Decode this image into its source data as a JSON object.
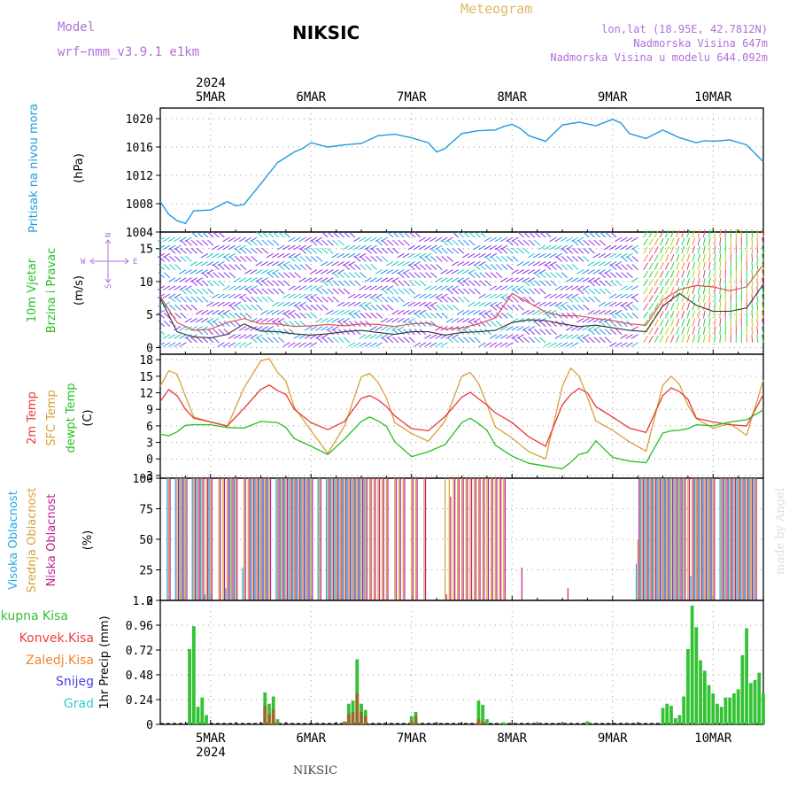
{
  "header": {
    "model_label": "Model",
    "model_name": "wrf−nmm_v3.9.1  e1km",
    "station": "NIKSIC",
    "product": "Meteogram",
    "coords": "lon,lat (18.95E, 42.7812N)",
    "altitude": "Nadmorska Visina 647m",
    "model_altitude": "Nadmorska Visina u modelu 644.092m"
  },
  "footer": {
    "station": "NIKSIC",
    "credit": "made by Angel"
  },
  "time_axis": {
    "year": "2024",
    "days": [
      "5MAR",
      "6MAR",
      "7MAR",
      "8MAR",
      "9MAR",
      "10MAR"
    ],
    "range_hours": [
      0,
      144
    ]
  },
  "panels": {
    "pressure": {
      "title": "Pritisak na nivou mora",
      "unit": "(hPa)"
    },
    "wind": {
      "title1": "10m Vjetar",
      "title2": "Brzina i Pravac",
      "unit": "(m/s)",
      "compass": {
        "n": "N",
        "s": "S",
        "e": "E",
        "w": "W"
      }
    },
    "temp": {
      "t2m": "2m Temp",
      "sfc": "SFC Temp",
      "dew": "dewpt Temp",
      "unit": "(C)"
    },
    "cloud": {
      "high": "Visoka Oblacnost",
      "mid": "Srednja Oblacnost",
      "low": "Niska Oblacnost",
      "unit": "(%)"
    },
    "precip": {
      "unit": "1hr Precip (mm)",
      "legend": [
        "Ukupna Kisa",
        "Konvek.Kisa",
        "Zaledj.Kisa",
        "Snijeg",
        "Grad"
      ]
    }
  },
  "colors": {
    "pressure": "#1e9be0",
    "wind_speed": "#303030",
    "wind_gust": "#e05050",
    "t2m": "#e83838",
    "sfc": "#d8a038",
    "dew": "#22c020",
    "cloud_high": "#22a8e8",
    "cloud_mid": "#d8a038",
    "cloud_low": "#c0208c",
    "precip_total": "#33c233",
    "precip_conv": "#ee3d3d",
    "precip_frz": "#ee8833",
    "precip_snow": "#4444dd",
    "precip_hail": "#33cccc",
    "title_purple": "#b070d8",
    "meteogram": "#e0b860"
  },
  "chart_data": [
    {
      "type": "line",
      "panel": "pressure",
      "ylabel": "(hPa)",
      "ylim": [
        1004,
        1021.5
      ],
      "yticks": [
        1004,
        1008,
        1012,
        1016,
        1020
      ],
      "x_hours": [
        0,
        2,
        4,
        6,
        8,
        12,
        16,
        18,
        20,
        24,
        28,
        32,
        34,
        36,
        40,
        44,
        48,
        52,
        56,
        60,
        64,
        66,
        68,
        72,
        76,
        80,
        82,
        84,
        86,
        88,
        92,
        96,
        100,
        104,
        108,
        110,
        112,
        116,
        120,
        124,
        128,
        130,
        132,
        136,
        140,
        144
      ],
      "series": [
        {
          "values": [
            1008.3,
            1006.5,
            1005.6,
            1005.2,
            1007.0,
            1007.1,
            1008.3,
            1007.7,
            1007.9,
            1010.8,
            1013.8,
            1015.3,
            1015.8,
            1016.6,
            1016.0,
            1016.3,
            1016.5,
            1017.6,
            1017.8,
            1017.3,
            1016.6,
            1015.3,
            1015.8,
            1017.9,
            1018.3,
            1018.4,
            1018.9,
            1019.2,
            1018.6,
            1017.6,
            1016.8,
            1019.1,
            1019.5,
            1019.0,
            1019.9,
            1019.4,
            1017.9,
            1017.2,
            1018.4,
            1017.3,
            1016.6,
            1016.9,
            1016.8,
            1017.0,
            1016.3,
            1013.9
          ]
        }
      ]
    },
    {
      "type": "line",
      "panel": "wind",
      "ylabel": "(m/s)",
      "ylim": [
        -1,
        17.5
      ],
      "yticks": [
        0,
        5,
        10,
        15
      ],
      "x_hours": [
        0,
        4,
        8,
        12,
        16,
        20,
        24,
        28,
        32,
        36,
        40,
        44,
        48,
        52,
        56,
        60,
        64,
        68,
        72,
        76,
        80,
        84,
        88,
        92,
        96,
        100,
        104,
        108,
        112,
        116,
        120,
        124,
        128,
        132,
        136,
        140,
        144
      ],
      "series": [
        {
          "name": "speed",
          "values": [
            7.5,
            2.4,
            1.6,
            1.5,
            2.0,
            3.6,
            2.5,
            2.4,
            2.1,
            1.9,
            2.1,
            2.4,
            2.6,
            2.3,
            2.0,
            2.4,
            2.4,
            1.9,
            2.3,
            2.4,
            2.6,
            3.8,
            4.2,
            4.1,
            3.6,
            3.2,
            3.4,
            3.0,
            2.6,
            2.4,
            6.3,
            8.2,
            6.4,
            5.5,
            5.5,
            6.0,
            9.6
          ]
        },
        {
          "name": "gust",
          "values": [
            7.8,
            3.8,
            2.6,
            2.8,
            3.8,
            4.4,
            3.6,
            3.6,
            3.2,
            3.3,
            3.5,
            3.3,
            3.6,
            3.5,
            3.2,
            3.6,
            3.7,
            2.8,
            3.0,
            3.6,
            4.5,
            8.2,
            6.8,
            5.4,
            4.8,
            4.8,
            4.4,
            4.1,
            3.6,
            3.4,
            7.2,
            8.8,
            9.4,
            9.2,
            8.6,
            9.2,
            12.6
          ]
        }
      ]
    },
    {
      "type": "line",
      "panel": "temperature",
      "ylabel": "(C)",
      "ylim": [
        -3.5,
        19
      ],
      "yticks": [
        -3,
        0,
        3,
        6,
        9,
        12,
        15,
        18
      ],
      "x_hours": [
        0,
        2,
        4,
        6,
        8,
        12,
        16,
        20,
        24,
        26,
        28,
        30,
        32,
        36,
        40,
        44,
        48,
        50,
        52,
        54,
        56,
        60,
        64,
        68,
        72,
        74,
        76,
        78,
        80,
        84,
        88,
        92,
        96,
        98,
        100,
        102,
        104,
        108,
        112,
        116,
        120,
        122,
        124,
        126,
        128,
        132,
        136,
        140,
        144
      ],
      "series": [
        {
          "name": "2m Temp",
          "values": [
            10.4,
            12.6,
            11.5,
            9.0,
            7.4,
            6.7,
            6.0,
            9.2,
            12.6,
            13.4,
            12.4,
            11.7,
            9.0,
            6.6,
            5.3,
            6.8,
            11.0,
            11.5,
            10.7,
            9.5,
            7.8,
            5.5,
            5.1,
            7.7,
            11.2,
            12.1,
            10.9,
            9.8,
            8.4,
            6.6,
            4.0,
            2.3,
            9.8,
            11.7,
            12.8,
            12.0,
            9.5,
            7.6,
            5.6,
            4.8,
            11.5,
            12.9,
            12.2,
            10.8,
            7.4,
            6.7,
            6.2,
            6.0,
            11.7
          ]
        },
        {
          "name": "SFC Temp",
          "values": [
            13.2,
            16.0,
            15.4,
            11.4,
            7.6,
            6.7,
            5.9,
            12.9,
            17.8,
            18.2,
            15.7,
            14.1,
            9.4,
            5.1,
            1.0,
            6.0,
            14.9,
            15.5,
            13.9,
            11.1,
            6.6,
            4.6,
            3.2,
            6.9,
            15.0,
            15.7,
            13.7,
            9.9,
            5.8,
            3.8,
            1.3,
            0.0,
            13.2,
            16.5,
            15.0,
            11.2,
            6.9,
            5.2,
            3.1,
            1.4,
            13.4,
            15.0,
            13.5,
            9.7,
            7.3,
            5.6,
            6.4,
            4.3,
            14.3
          ]
        },
        {
          "name": "dewpt Temp",
          "values": [
            4.5,
            4.2,
            4.9,
            6.1,
            6.2,
            6.2,
            5.7,
            5.6,
            6.8,
            6.7,
            6.6,
            5.7,
            3.7,
            2.3,
            0.8,
            3.6,
            6.8,
            7.6,
            6.9,
            5.9,
            3.1,
            0.4,
            1.3,
            2.6,
            6.6,
            7.4,
            6.4,
            5.2,
            2.5,
            0.5,
            -0.8,
            -1.3,
            -1.8,
            -0.6,
            0.8,
            1.2,
            3.3,
            0.3,
            -0.4,
            -0.7,
            4.7,
            5.1,
            5.2,
            5.5,
            6.2,
            6.0,
            6.7,
            7.1,
            8.9
          ]
        }
      ]
    },
    {
      "type": "bar",
      "panel": "cloud",
      "ylabel": "(%)",
      "ylim": [
        0,
        100
      ],
      "yticks": [
        0,
        25,
        50,
        75,
        100
      ],
      "x_hours": [
        2,
        4,
        5,
        6,
        8,
        9,
        10,
        11,
        12,
        14,
        15,
        16,
        17,
        18,
        20,
        21,
        22,
        23,
        24,
        25,
        26,
        28,
        29,
        30,
        31,
        32,
        33,
        34,
        35,
        36,
        38,
        40,
        41,
        42,
        43,
        44,
        45,
        46,
        47,
        48,
        49,
        50,
        51,
        52,
        53,
        54,
        56,
        57,
        58,
        60,
        61,
        63,
        68,
        69,
        70,
        71,
        72,
        73,
        74,
        75,
        76,
        77,
        78,
        79,
        80,
        81,
        82,
        86,
        97,
        102,
        114,
        115,
        116,
        117,
        118,
        119,
        120,
        121,
        122,
        123,
        124,
        125,
        126,
        127,
        128,
        129,
        130,
        131,
        132,
        134,
        135,
        136,
        137,
        138,
        139,
        140,
        141,
        142
      ],
      "series": [
        {
          "name": "Visoka Oblacnost",
          "values": [
            100,
            100,
            100,
            100,
            100,
            100,
            100,
            5,
            100,
            0,
            0,
            10,
            100,
            100,
            27,
            0,
            100,
            100,
            100,
            100,
            100,
            100,
            100,
            100,
            100,
            100,
            100,
            100,
            100,
            100,
            100,
            100,
            100,
            100,
            100,
            100,
            100,
            100,
            100,
            100,
            100,
            0,
            0,
            0,
            0,
            0,
            0,
            0,
            0,
            0,
            0,
            0,
            0,
            0,
            0,
            0,
            0,
            0,
            0,
            0,
            0,
            0,
            0,
            0,
            0,
            0,
            0,
            0,
            0,
            0,
            30,
            100,
            100,
            100,
            100,
            100,
            100,
            100,
            100,
            100,
            100,
            100,
            0,
            20,
            100,
            100,
            100,
            100,
            100,
            100,
            100,
            100,
            100,
            100,
            100,
            100,
            100,
            100
          ]
        },
        {
          "name": "Srednja Oblacnost",
          "values": [
            100,
            100,
            100,
            100,
            100,
            100,
            100,
            100,
            100,
            100,
            100,
            100,
            100,
            100,
            100,
            100,
            100,
            100,
            100,
            100,
            100,
            100,
            100,
            100,
            100,
            100,
            100,
            100,
            100,
            100,
            100,
            100,
            100,
            100,
            100,
            100,
            100,
            100,
            100,
            100,
            100,
            100,
            100,
            100,
            100,
            100,
            100,
            100,
            100,
            100,
            100,
            100,
            100,
            100,
            100,
            100,
            100,
            100,
            100,
            100,
            100,
            100,
            100,
            100,
            100,
            100,
            100,
            0,
            0,
            0,
            50,
            100,
            100,
            100,
            100,
            100,
            100,
            100,
            100,
            100,
            100,
            100,
            100,
            100,
            100,
            100,
            100,
            100,
            100,
            100,
            100,
            100,
            100,
            100,
            100,
            100,
            100,
            100
          ]
        },
        {
          "name": "Niska Oblacnost",
          "values": [
            100,
            100,
            100,
            100,
            100,
            100,
            100,
            100,
            100,
            100,
            100,
            100,
            100,
            100,
            100,
            100,
            100,
            100,
            100,
            100,
            100,
            100,
            100,
            100,
            100,
            100,
            100,
            100,
            100,
            100,
            100,
            100,
            100,
            100,
            100,
            100,
            100,
            100,
            100,
            100,
            100,
            100,
            100,
            100,
            100,
            100,
            100,
            100,
            100,
            100,
            100,
            100,
            5,
            85,
            100,
            100,
            100,
            100,
            100,
            100,
            100,
            100,
            100,
            100,
            100,
            100,
            100,
            27,
            10,
            0,
            100,
            100,
            100,
            100,
            100,
            100,
            100,
            100,
            100,
            100,
            100,
            100,
            100,
            100,
            100,
            100,
            100,
            100,
            100,
            100,
            100,
            100,
            100,
            100,
            100,
            100,
            100,
            100
          ]
        }
      ]
    },
    {
      "type": "bar",
      "panel": "precip",
      "ylabel": "1hr Precip (mm)",
      "ylim": [
        0,
        1.2
      ],
      "yticks": [
        0,
        0.24,
        0.48,
        0.72,
        0.96,
        1.2
      ],
      "x_hours": [
        7,
        8,
        9,
        10,
        11,
        12,
        25,
        26,
        27,
        28,
        29,
        30,
        44,
        45,
        46,
        47,
        48,
        49,
        50,
        60,
        61,
        76,
        77,
        78,
        82,
        102,
        120,
        121,
        122,
        123,
        124,
        125,
        126,
        127,
        128,
        129,
        130,
        131,
        132,
        133,
        134,
        135,
        136,
        137,
        138,
        139,
        140,
        141,
        142,
        143,
        144
      ],
      "series": [
        {
          "name": "Ukupna Kisa",
          "values": [
            0.73,
            0.95,
            0.17,
            0.26,
            0.09,
            0.0,
            0.31,
            0.2,
            0.27,
            0.05,
            0.0,
            0.0,
            0.03,
            0.2,
            0.23,
            0.63,
            0.2,
            0.14,
            0.0,
            0.08,
            0.12,
            0.23,
            0.19,
            0.05,
            0.02,
            0.03,
            0.16,
            0.2,
            0.18,
            0.06,
            0.09,
            0.27,
            0.73,
            1.15,
            0.94,
            0.62,
            0.52,
            0.38,
            0.3,
            0.2,
            0.17,
            0.26,
            0.26,
            0.3,
            0.34,
            0.67,
            0.93,
            0.4,
            0.43,
            0.5,
            0.3
          ]
        },
        {
          "name": "Konvek.Kisa",
          "values": [
            0,
            0,
            0,
            0,
            0,
            0,
            0.18,
            0.1,
            0.15,
            0.02,
            0,
            0,
            0.02,
            0.1,
            0.12,
            0.3,
            0.12,
            0.08,
            0,
            0.03,
            0.08,
            0.05,
            0.03,
            0,
            0,
            0,
            0,
            0,
            0,
            0,
            0,
            0,
            0,
            0,
            0,
            0,
            0,
            0,
            0,
            0,
            0,
            0,
            0,
            0,
            0,
            0,
            0,
            0,
            0,
            0,
            0
          ]
        }
      ]
    }
  ]
}
